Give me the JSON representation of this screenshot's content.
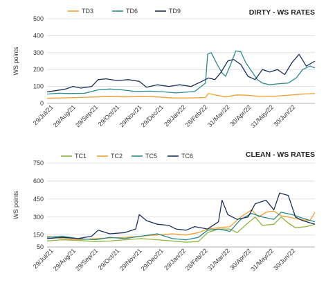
{
  "chart_data": [
    {
      "type": "line",
      "title": "DIRTY - WS RATES",
      "ylabel": "WS points",
      "ylim": [
        0,
        500
      ],
      "yticks": [
        0,
        100,
        200,
        300,
        400,
        500
      ],
      "xlim": [
        "2021-07-20",
        "2022-07-27"
      ],
      "xticks": [
        "29/Jul/21",
        "29/Aug/21",
        "29/Sep/21",
        "29/Oct/21",
        "29/Nov/21",
        "29/Dec/21",
        "29/Jan/22",
        "28/Feb/22",
        "31/Mar/22",
        "30/Apr/22",
        "31/May/22",
        "30/Jun/22"
      ],
      "xtick_dates": [
        "2021-07-29",
        "2021-08-29",
        "2021-09-29",
        "2021-10-29",
        "2021-11-29",
        "2021-12-29",
        "2022-01-29",
        "2022-02-28",
        "2022-03-31",
        "2022-04-30",
        "2022-05-31",
        "2022-06-30"
      ],
      "legend_position": "top-left",
      "grid": true,
      "series": [
        {
          "name": "TD3",
          "color": "#F0A030",
          "points": [
            [
              "2021-07-20",
              30
            ],
            [
              "2021-08-10",
              32
            ],
            [
              "2021-09-01",
              35
            ],
            [
              "2021-09-25",
              38
            ],
            [
              "2021-10-15",
              40
            ],
            [
              "2021-11-05",
              38
            ],
            [
              "2021-11-28",
              40
            ],
            [
              "2021-12-20",
              38
            ],
            [
              "2022-01-10",
              32
            ],
            [
              "2022-02-05",
              32
            ],
            [
              "2022-02-25",
              35
            ],
            [
              "2022-03-01",
              58
            ],
            [
              "2022-03-10",
              50
            ],
            [
              "2022-03-25",
              38
            ],
            [
              "2022-04-10",
              50
            ],
            [
              "2022-04-25",
              48
            ],
            [
              "2022-05-10",
              42
            ],
            [
              "2022-05-31",
              42
            ],
            [
              "2022-06-20",
              48
            ],
            [
              "2022-07-10",
              55
            ],
            [
              "2022-07-27",
              58
            ]
          ]
        },
        {
          "name": "TD6",
          "color": "#2A8A8A",
          "points": [
            [
              "2021-07-20",
              55
            ],
            [
              "2021-08-05",
              60
            ],
            [
              "2021-08-20",
              58
            ],
            [
              "2021-09-10",
              60
            ],
            [
              "2021-09-29",
              80
            ],
            [
              "2021-10-15",
              85
            ],
            [
              "2021-11-01",
              80
            ],
            [
              "2021-11-20",
              70
            ],
            [
              "2021-12-10",
              72
            ],
            [
              "2021-12-29",
              68
            ],
            [
              "2022-01-15",
              62
            ],
            [
              "2022-02-10",
              70
            ],
            [
              "2022-02-25",
              120
            ],
            [
              "2022-02-28",
              290
            ],
            [
              "2022-03-05",
              300
            ],
            [
              "2022-03-12",
              240
            ],
            [
              "2022-03-20",
              180
            ],
            [
              "2022-03-25",
              160
            ],
            [
              "2022-04-01",
              230
            ],
            [
              "2022-04-08",
              310
            ],
            [
              "2022-04-15",
              305
            ],
            [
              "2022-04-22",
              240
            ],
            [
              "2022-04-30",
              190
            ],
            [
              "2022-05-08",
              140
            ],
            [
              "2022-05-15",
              120
            ],
            [
              "2022-05-25",
              110
            ],
            [
              "2022-06-05",
              115
            ],
            [
              "2022-06-20",
              120
            ],
            [
              "2022-07-01",
              150
            ],
            [
              "2022-07-10",
              200
            ],
            [
              "2022-07-20",
              220
            ],
            [
              "2022-07-27",
              210
            ]
          ]
        },
        {
          "name": "TD9",
          "color": "#1B2F5E",
          "points": [
            [
              "2021-07-20",
              68
            ],
            [
              "2021-08-01",
              75
            ],
            [
              "2021-08-15",
              85
            ],
            [
              "2021-08-25",
              100
            ],
            [
              "2021-09-05",
              90
            ],
            [
              "2021-09-20",
              100
            ],
            [
              "2021-09-29",
              140
            ],
            [
              "2021-10-10",
              145
            ],
            [
              "2021-10-25",
              135
            ],
            [
              "2021-11-10",
              140
            ],
            [
              "2021-11-25",
              130
            ],
            [
              "2021-12-05",
              95
            ],
            [
              "2021-12-20",
              110
            ],
            [
              "2022-01-05",
              100
            ],
            [
              "2022-01-20",
              110
            ],
            [
              "2022-02-05",
              100
            ],
            [
              "2022-02-20",
              130
            ],
            [
              "2022-03-01",
              150
            ],
            [
              "2022-03-10",
              140
            ],
            [
              "2022-03-18",
              180
            ],
            [
              "2022-03-28",
              250
            ],
            [
              "2022-04-05",
              260
            ],
            [
              "2022-04-15",
              230
            ],
            [
              "2022-04-25",
              160
            ],
            [
              "2022-05-05",
              140
            ],
            [
              "2022-05-15",
              200
            ],
            [
              "2022-05-25",
              185
            ],
            [
              "2022-06-05",
              200
            ],
            [
              "2022-06-15",
              170
            ],
            [
              "2022-06-25",
              240
            ],
            [
              "2022-07-05",
              290
            ],
            [
              "2022-07-15",
              220
            ],
            [
              "2022-07-27",
              250
            ]
          ]
        }
      ]
    },
    {
      "type": "line",
      "title": "CLEAN - WS RATES",
      "ylabel": "WS points",
      "ylim": [
        50,
        750
      ],
      "yticks": [
        50,
        150,
        300,
        450,
        600,
        750
      ],
      "xlim": [
        "2021-07-20",
        "2022-07-27"
      ],
      "xticks": [
        "29/Jul/21",
        "29/Aug/21",
        "29/Sep/21",
        "29/Oct/21",
        "29/Nov/21",
        "29/Dec/21",
        "29/Jan/22",
        "28/Feb/22",
        "31/Mar/22",
        "30/Apr/22",
        "31/May/22",
        "30/Jun/22"
      ],
      "xtick_dates": [
        "2021-07-29",
        "2021-08-29",
        "2021-09-29",
        "2021-10-29",
        "2021-11-29",
        "2021-12-29",
        "2022-01-29",
        "2022-02-28",
        "2022-03-31",
        "2022-04-30",
        "2022-05-31",
        "2022-06-30"
      ],
      "legend_position": "top-left",
      "grid": true,
      "series": [
        {
          "name": "TC1",
          "color": "#8DB33A",
          "points": [
            [
              "2021-07-20",
              100
            ],
            [
              "2021-08-10",
              110
            ],
            [
              "2021-09-01",
              105
            ],
            [
              "2021-09-25",
              95
            ],
            [
              "2021-10-15",
              100
            ],
            [
              "2021-11-05",
              110
            ],
            [
              "2021-11-28",
              120
            ],
            [
              "2021-12-20",
              110
            ],
            [
              "2022-01-10",
              100
            ],
            [
              "2022-01-29",
              90
            ],
            [
              "2022-02-15",
              95
            ],
            [
              "2022-02-28",
              170
            ],
            [
              "2022-03-15",
              200
            ],
            [
              "2022-03-31",
              200
            ],
            [
              "2022-04-10",
              170
            ],
            [
              "2022-04-25",
              250
            ],
            [
              "2022-05-05",
              300
            ],
            [
              "2022-05-15",
              230
            ],
            [
              "2022-05-31",
              240
            ],
            [
              "2022-06-10",
              300
            ],
            [
              "2022-06-20",
              250
            ],
            [
              "2022-06-30",
              210
            ],
            [
              "2022-07-15",
              220
            ],
            [
              "2022-07-27",
              240
            ]
          ]
        },
        {
          "name": "TC2",
          "color": "#F0A030",
          "points": [
            [
              "2021-07-20",
              140
            ],
            [
              "2021-08-10",
              120
            ],
            [
              "2021-09-01",
              110
            ],
            [
              "2021-09-25",
              120
            ],
            [
              "2021-10-15",
              125
            ],
            [
              "2021-11-05",
              130
            ],
            [
              "2021-11-28",
              140
            ],
            [
              "2021-12-20",
              150
            ],
            [
              "2022-01-10",
              160
            ],
            [
              "2022-01-29",
              150
            ],
            [
              "2022-02-15",
              170
            ],
            [
              "2022-02-28",
              200
            ],
            [
              "2022-03-15",
              210
            ],
            [
              "2022-03-31",
              220
            ],
            [
              "2022-04-15",
              300
            ],
            [
              "2022-04-30",
              360
            ],
            [
              "2022-05-10",
              300
            ],
            [
              "2022-05-20",
              340
            ],
            [
              "2022-05-31",
              350
            ],
            [
              "2022-06-10",
              310
            ],
            [
              "2022-06-20",
              300
            ],
            [
              "2022-07-05",
              280
            ],
            [
              "2022-07-20",
              270
            ],
            [
              "2022-07-27",
              340
            ]
          ]
        },
        {
          "name": "TC5",
          "color": "#2A8A8A",
          "points": [
            [
              "2021-07-20",
              130
            ],
            [
              "2021-08-10",
              140
            ],
            [
              "2021-09-01",
              120
            ],
            [
              "2021-09-25",
              110
            ],
            [
              "2021-10-15",
              130
            ],
            [
              "2021-11-05",
              120
            ],
            [
              "2021-11-28",
              140
            ],
            [
              "2021-12-20",
              160
            ],
            [
              "2022-01-10",
              120
            ],
            [
              "2022-01-29",
              110
            ],
            [
              "2022-02-15",
              130
            ],
            [
              "2022-02-28",
              190
            ],
            [
              "2022-03-15",
              200
            ],
            [
              "2022-03-31",
              180
            ],
            [
              "2022-04-15",
              280
            ],
            [
              "2022-04-30",
              330
            ],
            [
              "2022-05-15",
              300
            ],
            [
              "2022-05-31",
              280
            ],
            [
              "2022-06-10",
              340
            ],
            [
              "2022-06-25",
              320
            ],
            [
              "2022-07-10",
              290
            ],
            [
              "2022-07-27",
              260
            ]
          ]
        },
        {
          "name": "TC6",
          "color": "#1B2F5E",
          "points": [
            [
              "2021-07-20",
              120
            ],
            [
              "2021-08-10",
              130
            ],
            [
              "2021-09-01",
              120
            ],
            [
              "2021-09-20",
              140
            ],
            [
              "2021-09-29",
              190
            ],
            [
              "2021-10-15",
              160
            ],
            [
              "2021-11-05",
              170
            ],
            [
              "2021-11-20",
              200
            ],
            [
              "2021-11-25",
              320
            ],
            [
              "2021-12-05",
              270
            ],
            [
              "2021-12-20",
              240
            ],
            [
              "2022-01-05",
              230
            ],
            [
              "2022-01-15",
              200
            ],
            [
              "2022-01-29",
              190
            ],
            [
              "2022-02-10",
              220
            ],
            [
              "2022-02-28",
              200
            ],
            [
              "2022-03-15",
              260
            ],
            [
              "2022-03-20",
              440
            ],
            [
              "2022-03-28",
              320
            ],
            [
              "2022-04-10",
              280
            ],
            [
              "2022-04-25",
              300
            ],
            [
              "2022-05-05",
              410
            ],
            [
              "2022-05-20",
              440
            ],
            [
              "2022-05-31",
              360
            ],
            [
              "2022-06-08",
              500
            ],
            [
              "2022-06-20",
              480
            ],
            [
              "2022-06-30",
              300
            ],
            [
              "2022-07-10",
              270
            ],
            [
              "2022-07-27",
              240
            ]
          ]
        }
      ]
    }
  ]
}
